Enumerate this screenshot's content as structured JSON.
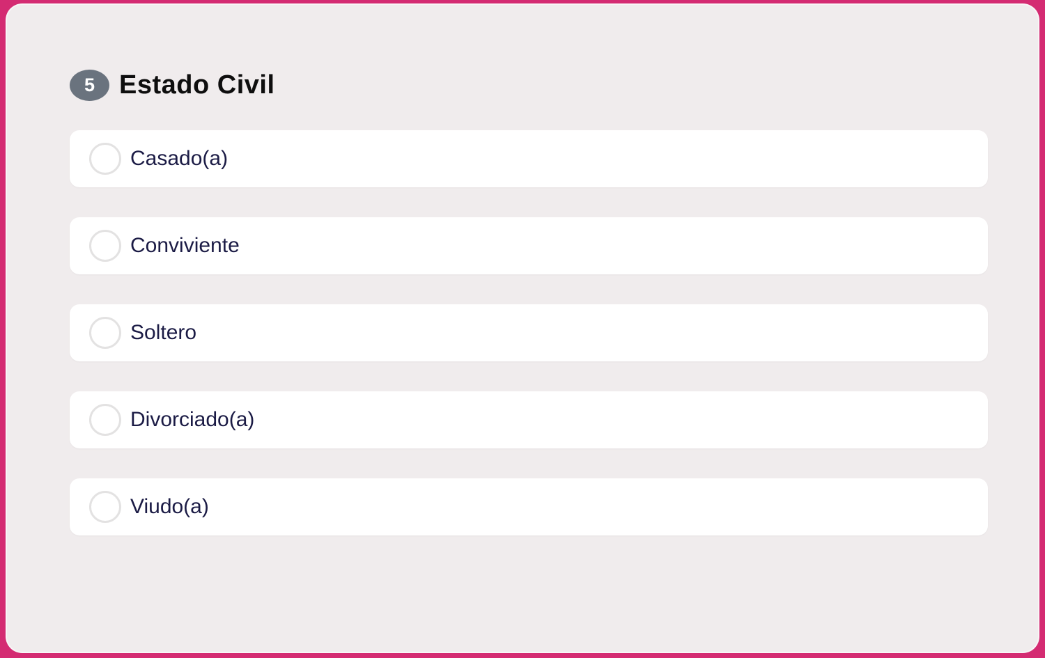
{
  "colors": {
    "accent": "#d42b72",
    "card_bg": "#f0eced",
    "badge_bg": "#6a737e",
    "option_text": "#1b1b45"
  },
  "question": {
    "number": "5",
    "title": "Estado Civil"
  },
  "options": [
    {
      "label": "Casado(a)",
      "selected": false
    },
    {
      "label": "Conviviente",
      "selected": false
    },
    {
      "label": "Soltero",
      "selected": false
    },
    {
      "label": "Divorciado(a)",
      "selected": false
    },
    {
      "label": "Viudo(a)",
      "selected": false
    }
  ]
}
